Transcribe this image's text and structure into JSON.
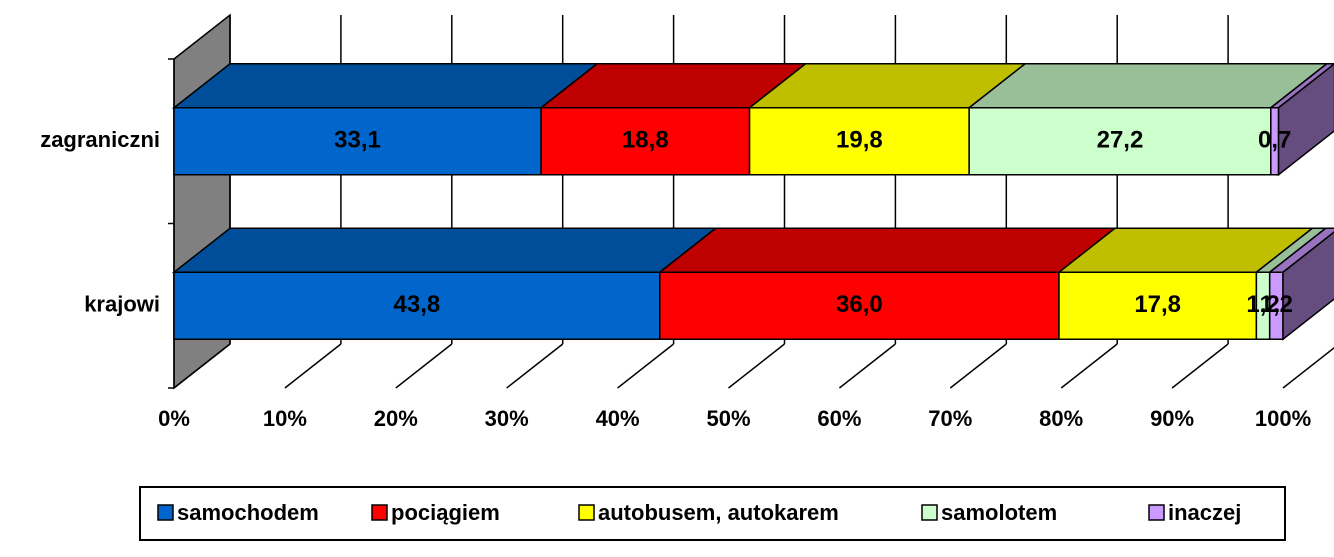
{
  "chart_data": {
    "type": "stacked-bar-3d-horizontal",
    "categories": [
      "krajowi",
      "zagraniczni"
    ],
    "series": [
      {
        "name": "samochodem",
        "color": "#0066cc",
        "values": [
          43.8,
          33.1
        ],
        "value_labels": [
          "43,8",
          "33,1"
        ]
      },
      {
        "name": "pociągiem",
        "color": "#ff0000",
        "values": [
          36.0,
          18.8
        ],
        "value_labels": [
          "36,0",
          "18,8"
        ]
      },
      {
        "name": "autobusem, autokarem",
        "color": "#ffff00",
        "values": [
          17.8,
          19.8
        ],
        "value_labels": [
          "17,8",
          "19,8"
        ]
      },
      {
        "name": "samolotem",
        "color": "#ccffcc",
        "values": [
          1.2,
          27.2
        ],
        "value_labels": [
          "1,2",
          "27,2"
        ]
      },
      {
        "name": "inaczej",
        "color": "#cc99ff",
        "values": [
          1.2,
          0.7
        ],
        "value_labels": [
          "1,2",
          "0,7"
        ]
      }
    ],
    "xlim": [
      0,
      100
    ],
    "xticks": [
      {
        "value": 0,
        "label": "0%"
      },
      {
        "value": 10,
        "label": "10%"
      },
      {
        "value": 20,
        "label": "20%"
      },
      {
        "value": 30,
        "label": "30%"
      },
      {
        "value": 40,
        "label": "40%"
      },
      {
        "value": 50,
        "label": "50%"
      },
      {
        "value": 60,
        "label": "60%"
      },
      {
        "value": 70,
        "label": "70%"
      },
      {
        "value": 80,
        "label": "80%"
      },
      {
        "value": 90,
        "label": "90%"
      },
      {
        "value": 100,
        "label": "100%"
      }
    ],
    "grid": true,
    "legend": "bottom"
  }
}
